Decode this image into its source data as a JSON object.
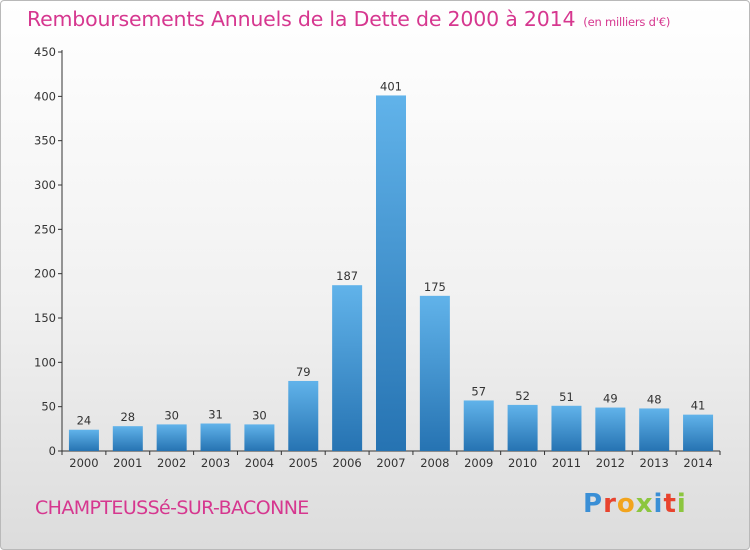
{
  "header": {
    "title": "Remboursements Annuels de la Dette de 2000 à 2014",
    "unit": "(en milliers d'€)"
  },
  "footer": {
    "commune": "CHAMPTEUSSé-SUR-BACONNE",
    "brand_letters": [
      "P",
      "r",
      "o",
      "x",
      "i",
      "t",
      "i"
    ],
    "brand_colors": [
      "#3a8fd6",
      "#e8432e",
      "#f2a41d",
      "#8cc63f",
      "#3a8fd6",
      "#e8432e",
      "#8cc63f"
    ]
  },
  "colors": {
    "accent": "#d6378f",
    "bar_light": "#61b3ea",
    "bar_dark": "#2673b2"
  },
  "chart_data": {
    "type": "bar",
    "title": "Remboursements Annuels de la Dette de 2000 à 2014",
    "subtitle": "(en milliers d'€)",
    "xlabel": "",
    "ylabel": "",
    "categories": [
      "2000",
      "2001",
      "2002",
      "2003",
      "2004",
      "2005",
      "2006",
      "2007",
      "2008",
      "2009",
      "2010",
      "2011",
      "2012",
      "2013",
      "2014"
    ],
    "values": [
      24,
      28,
      30,
      31,
      30,
      79,
      187,
      401,
      175,
      57,
      52,
      51,
      49,
      48,
      41
    ],
    "data_labels": [
      "24",
      "28",
      "30",
      "31",
      "30",
      "79",
      "187",
      "401",
      "175",
      "57",
      "52",
      "51",
      "49",
      "48",
      "41"
    ],
    "ylim": [
      0,
      450
    ],
    "yticks": [
      0,
      50,
      100,
      150,
      200,
      250,
      300,
      350,
      400,
      450
    ],
    "grid": false,
    "legend": "none"
  }
}
